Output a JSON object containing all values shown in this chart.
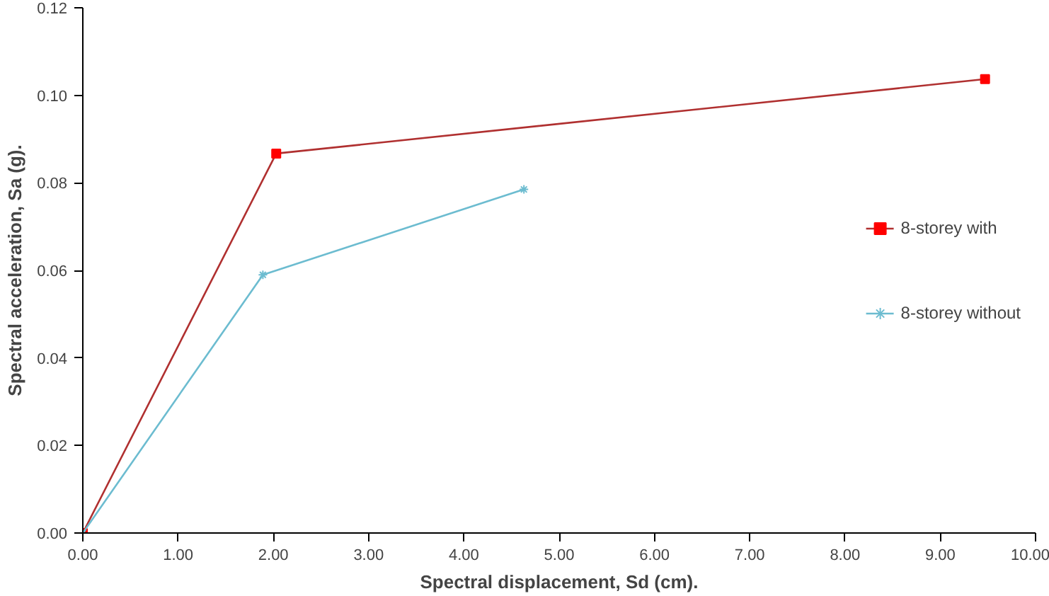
{
  "chart_data": {
    "type": "line",
    "xlabel": "Spectral displacement, Sd (cm).",
    "ylabel": "Spectral acceleration, Sa (g).",
    "xlim": [
      0,
      10
    ],
    "ylim": [
      0,
      0.12
    ],
    "xticks": [
      {
        "value": 0,
        "label": "0.00"
      },
      {
        "value": 1,
        "label": "1.00"
      },
      {
        "value": 2,
        "label": "2.00"
      },
      {
        "value": 3,
        "label": "3.00"
      },
      {
        "value": 4,
        "label": "4.00"
      },
      {
        "value": 5,
        "label": "5.00"
      },
      {
        "value": 6,
        "label": "6.00"
      },
      {
        "value": 7,
        "label": "7.00"
      },
      {
        "value": 8,
        "label": "8.00"
      },
      {
        "value": 9,
        "label": "9.00"
      },
      {
        "value": 10,
        "label": "10.00"
      }
    ],
    "yticks": [
      {
        "value": 0,
        "label": "0.00"
      },
      {
        "value": 0.02,
        "label": "0.02"
      },
      {
        "value": 0.04,
        "label": "0.04"
      },
      {
        "value": 0.06,
        "label": "0.06"
      },
      {
        "value": 0.08,
        "label": "0.08"
      },
      {
        "value": 0.1,
        "label": "0.10"
      },
      {
        "value": 0.12,
        "label": "0.12"
      }
    ],
    "grid": false,
    "legend": "right",
    "line_style": "solid",
    "series": [
      {
        "name": "8-storey with",
        "color": "#b03030",
        "marker": "square",
        "x": [
          0,
          2.03,
          9.47
        ],
        "values": [
          0,
          0.0867,
          0.1037
        ]
      },
      {
        "name": "8-storey without",
        "color": "#6cbcd0",
        "marker": "cross",
        "x": [
          0,
          1.89,
          4.63
        ],
        "values": [
          0,
          0.059,
          0.0785
        ]
      }
    ]
  }
}
